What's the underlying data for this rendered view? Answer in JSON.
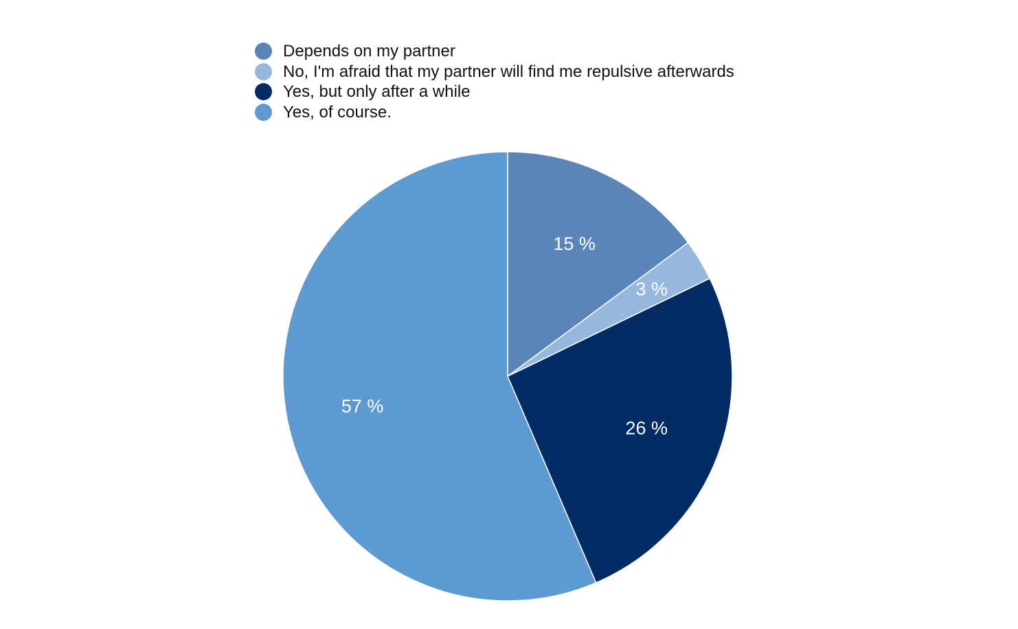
{
  "chart_data": {
    "type": "pie",
    "title": "",
    "legend_position": "top",
    "series": [
      {
        "name": "",
        "values": [
          15,
          3,
          26,
          57
        ]
      }
    ],
    "categories": [
      "Depends on my partner",
      "No, I'm afraid that my partner will find me repulsive afterwards",
      "Yes, but only after a while",
      "Yes, of course."
    ],
    "data_labels": [
      "15 %",
      "3 %",
      "26 %",
      "57 %"
    ],
    "colors": [
      "#5b84b8",
      "#95b8dc",
      "#032b64",
      "#5c9ad1"
    ],
    "start_angle_deg": 0,
    "direction": "clockwise"
  }
}
